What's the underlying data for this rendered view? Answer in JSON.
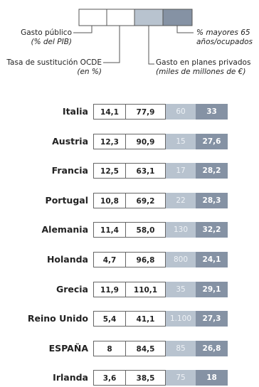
{
  "legend": {
    "public_spending_label": "Gasto público",
    "public_spending_unit": "(% del PIB)",
    "replacement_rate_label": "Tasa de sustitución OCDE",
    "replacement_rate_unit": "(en %)",
    "private_plans_label": "Gasto en planes privados",
    "private_plans_unit": "(miles de millones de €)",
    "over65_label": "% mayores 65",
    "over65_unit": "años/ocupados"
  },
  "colors": {
    "public_spending": "#ffffff",
    "replacement_rate": "#ffffff",
    "private_plans": "#b8c3cf",
    "over65": "#8592a4"
  },
  "chart_data": {
    "type": "table",
    "columns": [
      "Gasto público (% del PIB)",
      "Tasa de sustitución OCDE (en %)",
      "Gasto en planes privados (miles de millones de €)",
      "% mayores 65 años/ocupados"
    ],
    "rows": [
      {
        "country": "Italia",
        "values": [
          "14,1",
          "77,9",
          "60",
          "33"
        ]
      },
      {
        "country": "Austria",
        "values": [
          "12,3",
          "90,9",
          "15",
          "27,6"
        ]
      },
      {
        "country": "Francia",
        "values": [
          "12,5",
          "63,1",
          "17",
          "28,2"
        ]
      },
      {
        "country": "Portugal",
        "values": [
          "10,8",
          "69,2",
          "22",
          "28,3"
        ]
      },
      {
        "country": "Alemania",
        "values": [
          "11,4",
          "58,0",
          "130",
          "32,2"
        ]
      },
      {
        "country": "Holanda",
        "values": [
          "4,7",
          "96,8",
          "800",
          "24,1"
        ]
      },
      {
        "country": "Grecia",
        "values": [
          "11,9",
          "110,1",
          "35",
          "29,1"
        ]
      },
      {
        "country": "Reino Unido",
        "values": [
          "5,4",
          "41,1",
          "1.100",
          "27,3"
        ]
      },
      {
        "country": "ESPAÑA",
        "values": [
          "8",
          "84,5",
          "85",
          "26,8"
        ]
      },
      {
        "country": "Irlanda",
        "values": [
          "3,6",
          "38,5",
          "75",
          "18"
        ]
      }
    ]
  }
}
